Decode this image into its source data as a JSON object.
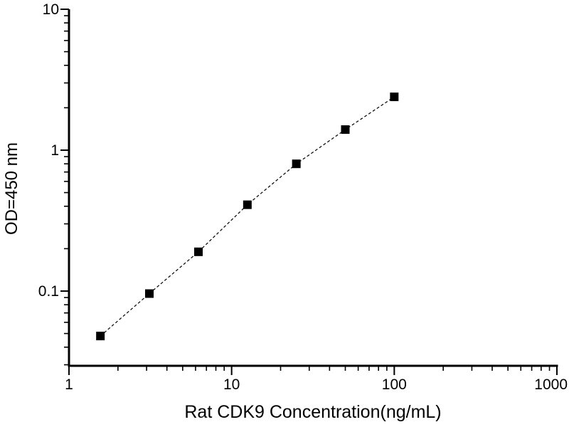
{
  "chart_data": {
    "type": "line",
    "title": "",
    "xlabel": "Rat CDK9 Concentration(ng/mL)",
    "ylabel": "OD=450 nm",
    "xscale": "log",
    "yscale": "log",
    "xlim": [
      1,
      1000
    ],
    "ylim": [
      0.0295,
      10
    ],
    "grid": false,
    "legend": null,
    "x_ticks": [
      {
        "value": 1,
        "label": "1"
      },
      {
        "value": 10,
        "label": "10"
      },
      {
        "value": 100,
        "label": "100"
      },
      {
        "value": 1000,
        "label": "1000"
      }
    ],
    "y_ticks": [
      {
        "value": 10,
        "label": "10"
      },
      {
        "value": 1,
        "label": "1"
      },
      {
        "value": 0.1,
        "label": "0.1"
      }
    ],
    "series": [
      {
        "marker": "filled-square",
        "marker_size": 12,
        "line_style": "dashed",
        "color": "#000000",
        "points": [
          {
            "x": 1.56,
            "y": 0.048
          },
          {
            "x": 3.12,
            "y": 0.096
          },
          {
            "x": 6.25,
            "y": 0.19
          },
          {
            "x": 12.5,
            "y": 0.41
          },
          {
            "x": 25,
            "y": 0.8
          },
          {
            "x": 50,
            "y": 1.4
          },
          {
            "x": 100,
            "y": 2.39
          }
        ]
      }
    ]
  },
  "colors": {
    "foreground": "#000000",
    "background": "#ffffff"
  }
}
